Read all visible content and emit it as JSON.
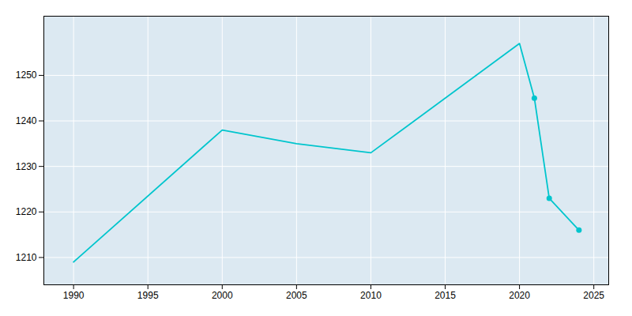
{
  "chart_data": {
    "type": "line",
    "x": [
      1990,
      2000,
      2005,
      2010,
      2020,
      2021,
      2022,
      2024
    ],
    "values": [
      1209,
      1238,
      1235,
      1233,
      1257,
      1245,
      1223,
      1216
    ],
    "color": "#00C5CD",
    "marker": "circle",
    "marker_x": [
      2021,
      2022,
      2024
    ],
    "xlim": [
      1988,
      2026
    ],
    "ylim": [
      1204,
      1263
    ],
    "xticks": [
      1990,
      1995,
      2000,
      2005,
      2010,
      2015,
      2020,
      2025
    ],
    "yticks": [
      1210,
      1220,
      1230,
      1240,
      1250
    ],
    "grid": true
  }
}
